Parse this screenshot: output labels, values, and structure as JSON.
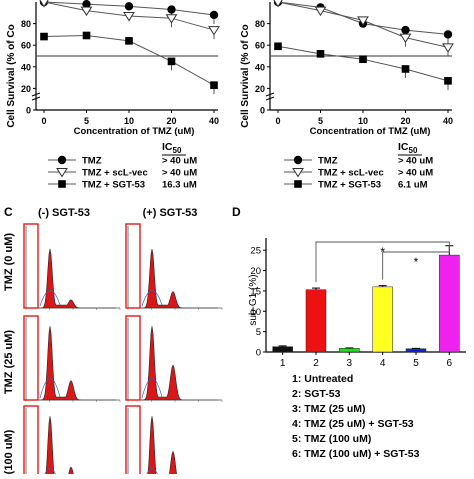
{
  "chart_data": [
    {
      "id": "A",
      "type": "line",
      "ylabel": "Cell Survival (% of Co",
      "xlabel": "Concentration of TMZ (uM)",
      "x_ticks": [
        "0",
        "5",
        "10",
        "20",
        "40"
      ],
      "x": [
        0,
        5,
        10,
        20,
        40
      ],
      "y_ticks": [
        0,
        20,
        40,
        60,
        80
      ],
      "ylim": [
        0,
        100
      ],
      "reference_line": 50,
      "series": [
        {
          "name": "TMZ",
          "marker": "circle",
          "values": [
            100,
            98,
            96,
            93,
            88
          ]
        },
        {
          "name": "TMZ + scL-vec",
          "marker": "triangle",
          "values": [
            100,
            92,
            87,
            85,
            74
          ]
        },
        {
          "name": "TMZ + SGT-53",
          "marker": "square",
          "values": [
            68,
            69,
            64,
            45,
            23
          ]
        }
      ],
      "legend_header": "IC",
      "legend_header_sub": "50",
      "ic50": [
        "> 40 uM",
        "> 40 uM",
        "16.3 uM"
      ]
    },
    {
      "id": "B",
      "type": "line",
      "ylabel": "Cell Survival (% of Co",
      "xlabel": "Concentration of TMZ (uM)",
      "x_ticks": [
        "0",
        "5",
        "10",
        "20",
        "40"
      ],
      "x": [
        0,
        5,
        10,
        20,
        40
      ],
      "y_ticks": [
        0,
        20,
        40,
        60,
        80
      ],
      "ylim": [
        0,
        100
      ],
      "reference_line": 50,
      "series": [
        {
          "name": "TMZ",
          "marker": "circle",
          "values": [
            100,
            95,
            80,
            74,
            70
          ]
        },
        {
          "name": "TMZ + scL-vec",
          "marker": "triangle",
          "values": [
            100,
            92,
            83,
            67,
            58
          ]
        },
        {
          "name": "TMZ + SGT-53",
          "marker": "square",
          "values": [
            59,
            52,
            47,
            38,
            27
          ]
        }
      ],
      "legend_header": "IC",
      "legend_header_sub": "50",
      "ic50": [
        "> 40 uM",
        "> 40 uM",
        "6.1 uM"
      ]
    },
    {
      "id": "D",
      "type": "bar",
      "ylabel": "sub-G1 (%)",
      "categories": [
        "1",
        "2",
        "3",
        "4",
        "5",
        "6"
      ],
      "values": [
        1.3,
        15.3,
        0.9,
        16.0,
        0.8,
        23.8
      ],
      "errors": [
        0.2,
        0.4,
        0.1,
        0.3,
        0.1,
        2.3
      ],
      "colors": [
        "#111111",
        "#ee1111",
        "#22dd22",
        "#ffff22",
        "#1122dd",
        "#ee22ee"
      ],
      "y_ticks": [
        0,
        5,
        10,
        15,
        20,
        25
      ],
      "ylim": [
        0,
        28
      ],
      "significance": [
        {
          "from": "2",
          "to": "6",
          "label": "*"
        },
        {
          "from": "4",
          "to": "6",
          "label": "*"
        }
      ],
      "legend_items": [
        "1: Untreated",
        "2: SGT-53",
        "3: TMZ (25 uM)",
        "4: TMZ (25 uM) + SGT-53",
        "5: TMZ (100 uM)",
        "6: TMZ (100 uM) + SGT-53"
      ]
    }
  ],
  "panel_c": {
    "panel_label": "C",
    "col_labels": [
      "(-) SGT-53",
      "(+) SGT-53"
    ],
    "row_labels": [
      "TMZ (0 uM)",
      "TMZ (25 uM)",
      "(100 uM)"
    ]
  },
  "panel_d_label": "D"
}
